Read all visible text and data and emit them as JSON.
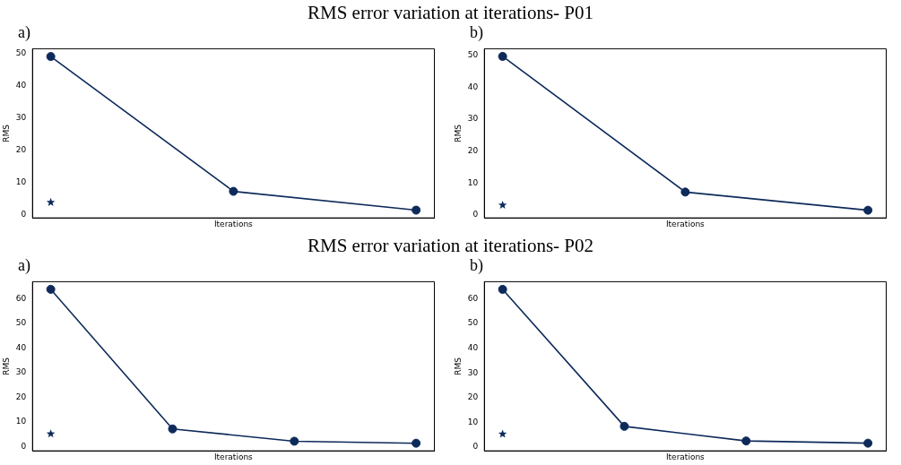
{
  "chart_data": [
    {
      "type": "line",
      "title": "RMS error variation at iterations- P01",
      "subtitle": "a)",
      "xlabel": "Iterations",
      "ylabel": "RMS",
      "categories": [
        null,
        null,
        null
      ],
      "series": [
        {
          "color": "#0d2a5a",
          "values": [
            49,
            7.3,
            1.5
          ],
          "marker": "circle"
        },
        {
          "type": "scatter",
          "color": "#0d2a5a",
          "values": [
            3.9,
            null,
            null
          ],
          "marker": "star"
        }
      ],
      "ylim": [
        -0.9,
        51.4
      ],
      "yticks": [
        0,
        10,
        20,
        30,
        40,
        50
      ],
      "grid": false,
      "tick_labels": "y",
      "legend": false
    },
    {
      "type": "line",
      "subtitle": "b)",
      "xlabel": "Iterations",
      "ylabel": "RMS",
      "categories": [
        null,
        null,
        null
      ],
      "series": [
        {
          "color": "#0d2a5a",
          "values": [
            49.7,
            7.2,
            1.5
          ],
          "marker": "circle"
        },
        {
          "type": "scatter",
          "color": "#0d2a5a",
          "values": [
            3.1,
            null,
            null
          ],
          "marker": "star"
        }
      ],
      "ylim": [
        -0.9,
        52.1
      ],
      "yticks": [
        0,
        10,
        20,
        30,
        40,
        50
      ],
      "grid": false,
      "tick_labels": "y",
      "legend": false
    },
    {
      "type": "line",
      "title": "RMS error variation at iterations- P02",
      "subtitle": "a)",
      "xlabel": "Iterations",
      "ylabel": "RMS",
      "categories": [
        null,
        null,
        null,
        null
      ],
      "series": [
        {
          "color": "#0d2a5a",
          "values": [
            63.8,
            7.1,
            2.1,
            1.3
          ],
          "marker": "circle"
        },
        {
          "type": "scatter",
          "color": "#0d2a5a",
          "values": [
            5.1,
            null,
            null,
            null
          ],
          "marker": "star"
        }
      ],
      "ylim": [
        -1.8,
        66.9
      ],
      "yticks": [
        0,
        10,
        20,
        30,
        40,
        50,
        60
      ],
      "grid": false,
      "tick_labels": "y",
      "legend": false
    },
    {
      "type": "line",
      "subtitle": "b)",
      "xlabel": "Iterations",
      "ylabel": "RMS",
      "categories": [
        null,
        null,
        null,
        null
      ],
      "series": [
        {
          "color": "#0d2a5a",
          "values": [
            63.8,
            8.4,
            2.5,
            1.6
          ],
          "marker": "circle"
        },
        {
          "type": "scatter",
          "color": "#0d2a5a",
          "values": [
            5.3,
            null,
            null,
            null
          ],
          "marker": "star"
        }
      ],
      "ylim": [
        -1.5,
        66.9
      ],
      "yticks": [
        0,
        10,
        20,
        30,
        40,
        50,
        60
      ],
      "grid": false,
      "tick_labels": "y",
      "legend": false
    }
  ]
}
